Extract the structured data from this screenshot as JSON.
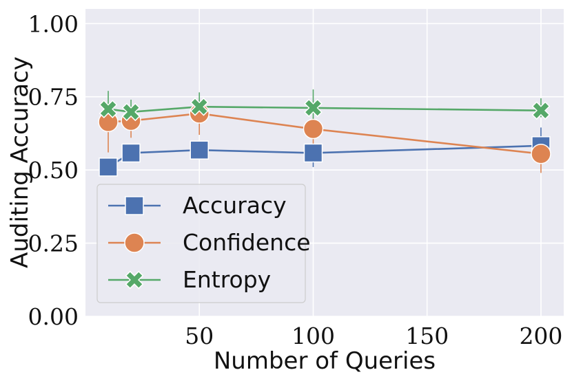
{
  "chart_data": {
    "type": "line",
    "title": "",
    "xlabel": "Number of Queries",
    "ylabel": "Auditing Accuracy",
    "x": [
      10,
      20,
      50,
      100,
      200
    ],
    "xlim": [
      0,
      210
    ],
    "ylim": [
      0,
      1.05
    ],
    "xticks": [
      50,
      100,
      150,
      200
    ],
    "xtick_labels": [
      "50",
      "100",
      "150",
      "200"
    ],
    "yticks": [
      0,
      0.25,
      0.5,
      0.75,
      1.0
    ],
    "ytick_labels": [
      "0.00",
      "0.25",
      "0.50",
      "0.75",
      "1.00"
    ],
    "grid": true,
    "legend_position": "lower-left",
    "series": [
      {
        "name": "Accuracy",
        "marker": "square",
        "color": "#4c72b0",
        "values": [
          0.51,
          0.558,
          0.568,
          0.558,
          0.583
        ],
        "err_low": [
          0.5,
          0.535,
          0.545,
          0.51,
          0.54
        ],
        "err_high": [
          0.52,
          0.575,
          0.59,
          0.59,
          0.645
        ]
      },
      {
        "name": "Confidence",
        "marker": "circle",
        "color": "#dd8452",
        "values": [
          0.664,
          0.668,
          0.693,
          0.64,
          0.555
        ],
        "err_low": [
          0.56,
          0.61,
          0.62,
          0.57,
          0.49
        ],
        "err_high": [
          0.7,
          0.7,
          0.74,
          0.68,
          0.59
        ]
      },
      {
        "name": "Entropy",
        "marker": "x",
        "color": "#55a868",
        "values": [
          0.708,
          0.698,
          0.716,
          0.712,
          0.703
        ],
        "err_low": [
          0.68,
          0.66,
          0.66,
          0.65,
          0.68
        ],
        "err_high": [
          0.77,
          0.74,
          0.765,
          0.775,
          0.745
        ]
      }
    ]
  }
}
